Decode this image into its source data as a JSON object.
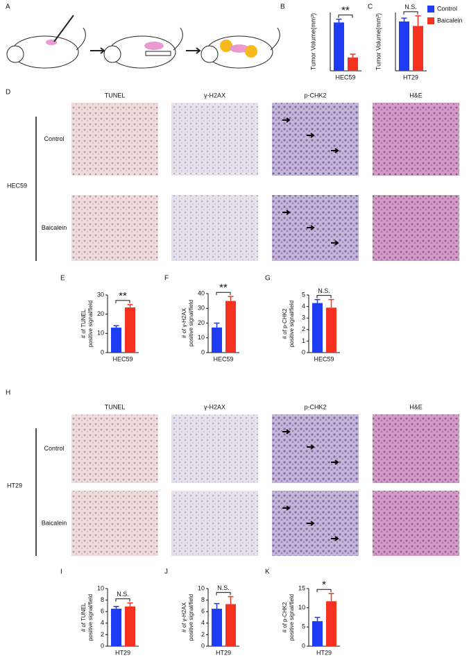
{
  "panel_letters": [
    "A",
    "B",
    "C",
    "D",
    "E",
    "F",
    "G",
    "H",
    "I",
    "J",
    "K"
  ],
  "chart_data": [
    {
      "type": "bar",
      "ylabel": [
        "Tumor Volume(mm³)"
      ],
      "categories": [
        "HEC59"
      ],
      "annotation": "**",
      "ylim": [
        0,
        350
      ],
      "series": [
        {
          "name": "Control",
          "color": "#1f3cf5",
          "values": [
            290
          ],
          "errors": [
            20
          ]
        },
        {
          "name": "Baicalein",
          "color": "#f5311f",
          "values": [
            80
          ],
          "errors": [
            20
          ]
        }
      ]
    },
    {
      "type": "bar",
      "ylabel": [
        "Tumor Volume(mm³)"
      ],
      "categories": [
        "HT29"
      ],
      "annotation": "N.S.",
      "ylim": [
        0,
        260
      ],
      "series": [
        {
          "name": "Control",
          "color": "#1f3cf5",
          "values": [
            220
          ],
          "errors": [
            15
          ]
        },
        {
          "name": "Baicalein",
          "color": "#f5311f",
          "values": [
            200
          ],
          "errors": [
            45
          ]
        }
      ]
    },
    {
      "type": "bar",
      "ylabel": [
        "# of TUNEL",
        "positive signal/field"
      ],
      "categories": [
        "HEC59"
      ],
      "annotation": "**",
      "ylim": [
        0,
        30
      ],
      "yticks": [
        0,
        10,
        20,
        30
      ],
      "series": [
        {
          "name": "Control",
          "color": "#1f3cf5",
          "values": [
            13
          ],
          "errors": [
            1
          ]
        },
        {
          "name": "Baicalein",
          "color": "#f5311f",
          "values": [
            23.5
          ],
          "errors": [
            1.5
          ]
        }
      ]
    },
    {
      "type": "bar",
      "ylabel": [
        "# of γ-H2AX",
        "positive signal/field"
      ],
      "categories": [
        "HEC59"
      ],
      "annotation": "**",
      "ylim": [
        0,
        40
      ],
      "yticks": [
        0,
        10,
        20,
        30,
        40
      ],
      "series": [
        {
          "name": "Control",
          "color": "#1f3cf5",
          "values": [
            17
          ],
          "errors": [
            3
          ]
        },
        {
          "name": "Baicalein",
          "color": "#f5311f",
          "values": [
            35
          ],
          "errors": [
            3
          ]
        }
      ]
    },
    {
      "type": "bar",
      "ylabel": [
        "# of p-CHK2",
        "positive signal/field"
      ],
      "categories": [
        "HEC59"
      ],
      "annotation": "N.S.",
      "ylim": [
        0,
        5
      ],
      "yticks": [
        0,
        1,
        2,
        3,
        4,
        5
      ],
      "series": [
        {
          "name": "Control",
          "color": "#1f3cf5",
          "values": [
            4.3
          ],
          "errors": [
            0.3
          ]
        },
        {
          "name": "Baicalein",
          "color": "#f5311f",
          "values": [
            3.9
          ],
          "errors": [
            0.7
          ]
        }
      ]
    },
    {
      "type": "bar",
      "ylabel": [
        "# of TUNEL",
        "positive signal/field"
      ],
      "categories": [
        "HT29"
      ],
      "annotation": "N.S.",
      "ylim": [
        0,
        10
      ],
      "yticks": [
        0,
        2,
        4,
        6,
        8,
        10
      ],
      "series": [
        {
          "name": "Control",
          "color": "#1f3cf5",
          "values": [
            6.5
          ],
          "errors": [
            0.4
          ]
        },
        {
          "name": "Baicalein",
          "color": "#f5311f",
          "values": [
            6.9
          ],
          "errors": [
            0.6
          ]
        }
      ]
    },
    {
      "type": "bar",
      "ylabel": [
        "# of γ-H2AX",
        "positive signal/field"
      ],
      "categories": [
        "HT29"
      ],
      "annotation": "N.S.",
      "ylim": [
        0,
        10
      ],
      "yticks": [
        0,
        2,
        4,
        6,
        8,
        10
      ],
      "series": [
        {
          "name": "Control",
          "color": "#1f3cf5",
          "values": [
            6.5
          ],
          "errors": [
            0.9
          ]
        },
        {
          "name": "Baicalein",
          "color": "#f5311f",
          "values": [
            7.3
          ],
          "errors": [
            1.3
          ]
        }
      ]
    },
    {
      "type": "bar",
      "ylabel": [
        "# of p-CHK2",
        "positive signal/field"
      ],
      "categories": [
        "HT29"
      ],
      "annotation": "*",
      "ylim": [
        0,
        15
      ],
      "yticks": [
        0,
        5,
        10,
        15
      ],
      "series": [
        {
          "name": "Control",
          "color": "#1f3cf5",
          "values": [
            6.5
          ],
          "errors": [
            1
          ]
        },
        {
          "name": "Baicalein",
          "color": "#f5311f",
          "values": [
            11.7
          ],
          "errors": [
            2
          ]
        }
      ]
    }
  ],
  "image_panels": [
    {
      "group": "HEC59",
      "columns": [
        "TUNEL",
        "γ-H2AX",
        "p-CHK2",
        "H&E"
      ],
      "rows": [
        "Control",
        "Baicalein"
      ]
    },
    {
      "group": "HT29",
      "columns": [
        "TUNEL",
        "γ-H2AX",
        "p-CHK2",
        "H&E"
      ],
      "rows": [
        "Control",
        "Baicalein"
      ]
    }
  ]
}
